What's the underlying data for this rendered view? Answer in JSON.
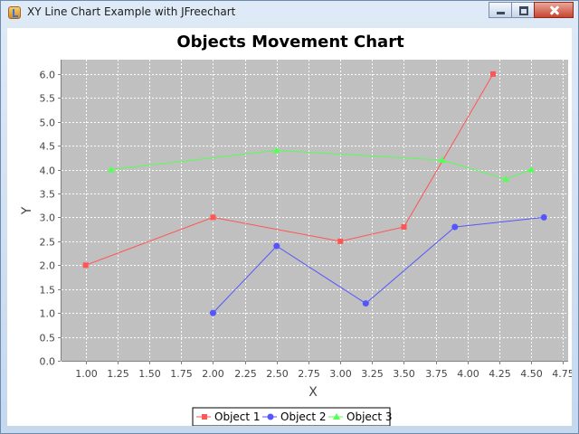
{
  "window": {
    "title": "XY Line Chart Example with JFreechart",
    "controls": [
      "minimize-icon",
      "maximize-icon",
      "close-icon"
    ]
  },
  "chart_data": {
    "type": "line",
    "title": "Objects Movement Chart",
    "xlabel": "X",
    "ylabel": "Y",
    "xlim": [
      0.81,
      4.79
    ],
    "ylim": [
      0,
      6.3
    ],
    "xticks": [
      "1.00",
      "1.25",
      "1.50",
      "1.75",
      "2.00",
      "2.25",
      "2.50",
      "2.75",
      "3.00",
      "3.25",
      "3.50",
      "3.75",
      "4.00",
      "4.25",
      "4.50",
      "4.75"
    ],
    "yticks": [
      "0.0",
      "0.5",
      "1.0",
      "1.5",
      "2.0",
      "2.5",
      "3.0",
      "3.5",
      "4.0",
      "4.5",
      "5.0",
      "5.5",
      "6.0"
    ],
    "grid": true,
    "legend": "bottom",
    "plot_background": "#c0c0c0",
    "series": [
      {
        "name": "Object 1",
        "color": "#ff5555",
        "marker": "square",
        "points": [
          [
            1.0,
            2.0
          ],
          [
            2.0,
            3.0
          ],
          [
            3.0,
            2.5
          ],
          [
            3.5,
            2.8
          ],
          [
            4.2,
            6.0
          ]
        ]
      },
      {
        "name": "Object 2",
        "color": "#5555ff",
        "marker": "circle",
        "points": [
          [
            2.0,
            1.0
          ],
          [
            2.5,
            2.4
          ],
          [
            3.2,
            1.2
          ],
          [
            3.9,
            2.8
          ],
          [
            4.6,
            3.0
          ]
        ]
      },
      {
        "name": "Object 3",
        "color": "#55ff55",
        "marker": "triangle",
        "points": [
          [
            1.2,
            4.0
          ],
          [
            2.5,
            4.4
          ],
          [
            3.8,
            4.2
          ],
          [
            4.3,
            3.8
          ],
          [
            4.5,
            4.0
          ]
        ]
      }
    ]
  }
}
